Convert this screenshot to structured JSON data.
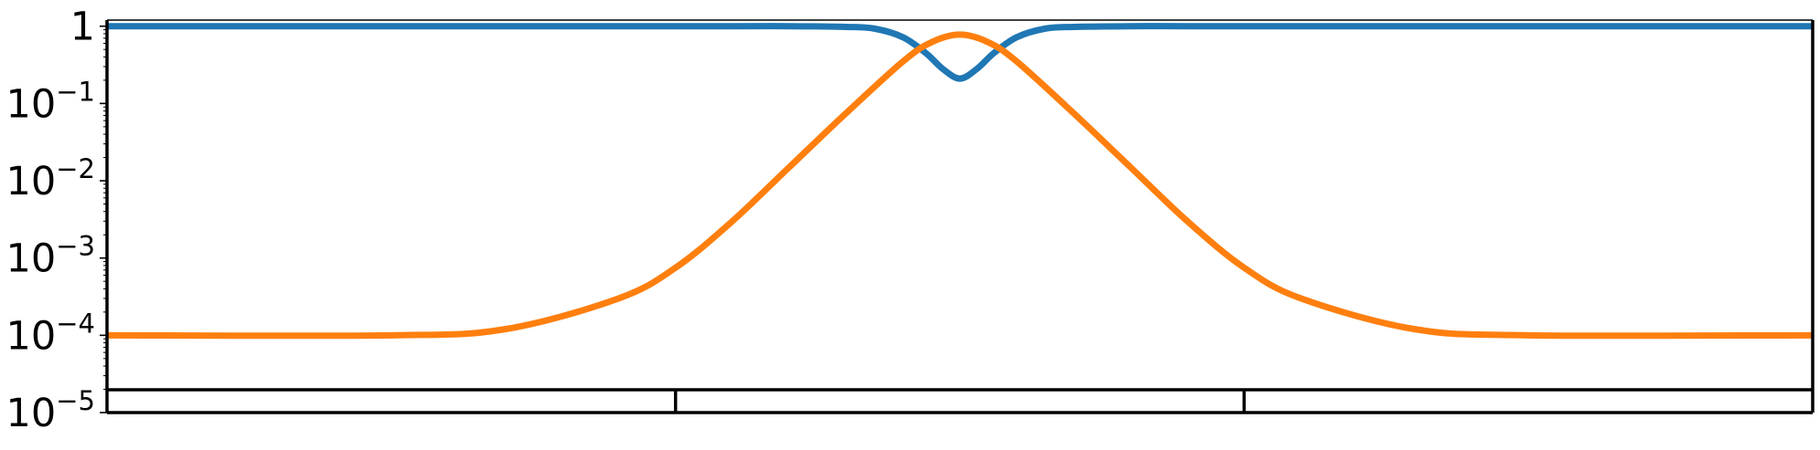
{
  "chart_data": {
    "type": "line",
    "title": "",
    "xlabel": "",
    "ylabel": "",
    "yscale": "log",
    "ylim": [
      1e-05,
      1.2
    ],
    "xlim": [
      -1.5,
      1.5
    ],
    "grid": false,
    "legend": "none",
    "y_tick_labels": [
      {
        "value": 1,
        "base": "1",
        "exp": ""
      },
      {
        "value": 0.1,
        "base": "10",
        "exp": "−1"
      },
      {
        "value": 0.01,
        "base": "10",
        "exp": "−2"
      },
      {
        "value": 0.001,
        "base": "10",
        "exp": "−3"
      },
      {
        "value": 0.0001,
        "base": "10",
        "exp": "−4"
      },
      {
        "value": 1e-05,
        "base": "10",
        "exp": "−5"
      }
    ],
    "segment_markers": [
      -0.5,
      0.5
    ],
    "series": [
      {
        "color": "#1f77b4",
        "x": [
          -1.5,
          -1.0,
          -0.6,
          -0.4,
          -0.3,
          -0.2,
          -0.15,
          -0.1,
          -0.06,
          -0.03,
          0.0,
          0.03,
          0.06,
          0.1,
          0.15,
          0.2,
          0.3,
          0.4,
          0.6,
          1.0,
          1.5
        ],
        "values": [
          1.0,
          1.0,
          1.0,
          1.0,
          1.0,
          0.98,
          0.93,
          0.72,
          0.45,
          0.28,
          0.21,
          0.28,
          0.45,
          0.72,
          0.93,
          0.98,
          1.0,
          1.0,
          1.0,
          1.0,
          1.0
        ]
      },
      {
        "color": "#ff7f0e",
        "x": [
          -1.5,
          -1.0,
          -0.8,
          -0.6,
          -0.5,
          -0.4,
          -0.3,
          -0.2,
          -0.1,
          -0.05,
          0.0,
          0.05,
          0.1,
          0.2,
          0.3,
          0.4,
          0.5,
          0.6,
          0.8,
          1.0,
          1.5
        ],
        "values": [
          0.0001,
          0.0001,
          0.00012,
          0.0003,
          0.00075,
          0.003,
          0.015,
          0.075,
          0.35,
          0.62,
          0.78,
          0.62,
          0.35,
          0.075,
          0.015,
          0.003,
          0.00075,
          0.0003,
          0.00012,
          0.0001,
          0.0001
        ]
      }
    ]
  },
  "colors": {
    "frame": "#000000",
    "background": "#ffffff"
  }
}
